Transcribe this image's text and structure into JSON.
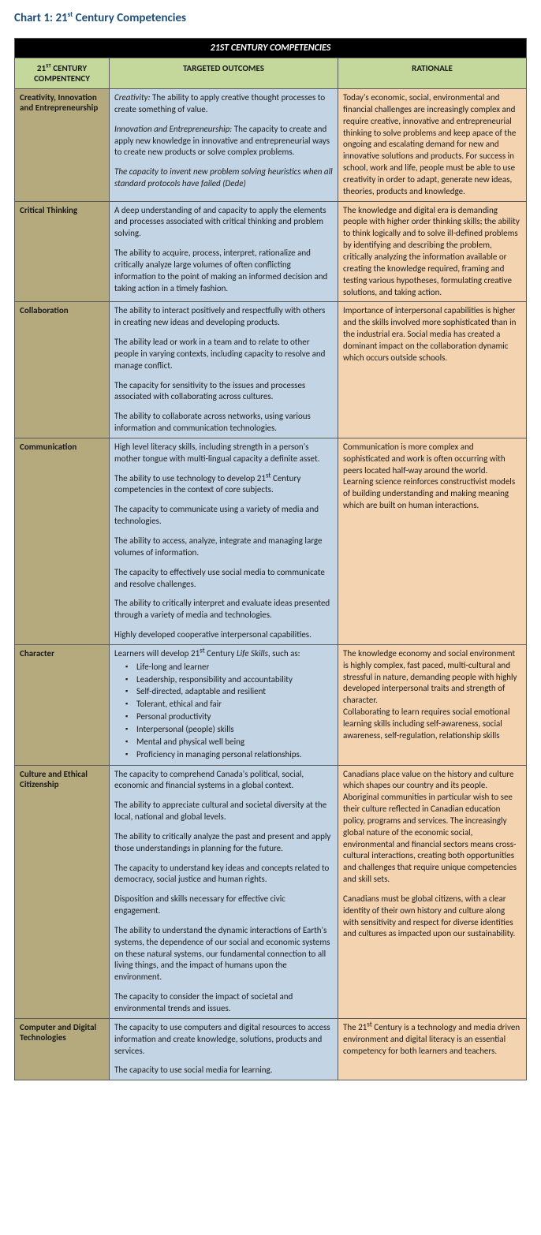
{
  "title_html": "Chart 1: 21<sup>st</sup> Century Competencies",
  "table_header": "21ST CENTURY COMPETENCIES",
  "col_headers": {
    "competency_html": "21<sup>ST</sup> CENTURY COMPENTENCY",
    "outcomes": "TARGETED OUTCOMES",
    "rationale": "RATIONALE"
  },
  "colors": {
    "title": "#1f4e79",
    "header_bg": "#000000",
    "header_fg": "#ffffff",
    "subheader_bg": "#c5d89c",
    "competency_bg": "#b5a97e",
    "outcomes_bg": "#c3d4e5",
    "rationale_bg": "#f3d3b0",
    "border": "#5a5a5a"
  },
  "rows": [
    {
      "competency": "Creativity, Innovation and Entrepreneurship",
      "outcomes_html": "<p><em class=\"lead\">Creativity:</em> The ability to apply creative thought processes to create something of value.</p><p><em class=\"lead\">Innovation and Entrepreneurship:</em> The capacity to create and apply new knowledge in innovative and entrepreneurial ways to create new products or solve complex problems.</p><em class=\"quote\">The capacity to invent new problem solving heuristics when all standard protocols have failed (Dede)</em>",
      "rationale_html": "Today's economic, social, environmental and financial challenges are increasingly complex and require creative, innovative and entrepreneurial thinking to solve problems and keep apace of the ongoing and escalating demand for new and innovative solutions and products. For success in school, work and life, people must be able to use creativity in order to adapt, generate new ideas, theories, products and knowledge."
    },
    {
      "competency": "Critical Thinking",
      "outcomes_html": "<p>A deep understanding of and capacity to apply the elements and processes associated with critical thinking and problem solving.</p><p>The ability to acquire, process, interpret, rationalize and critically analyze large volumes of often conflicting information to the point of making an informed decision and taking action in a timely fashion.</p>",
      "rationale_html": "The knowledge and digital era is demanding people with higher order thinking skills; the ability to think logically and to solve ill-defined problems by identifying and describing the problem, critically analyzing the information available or creating the knowledge required, framing and testing various hypotheses, formulating creative solutions, and taking action."
    },
    {
      "competency": "Collaboration",
      "outcomes_html": "<p>The ability to interact positively and respectfully with others in creating new ideas and developing products.</p><p>The ability lead or work in a team and to relate to other people in varying contexts, including capacity to resolve and manage conflict.</p><p>The capacity for sensitivity to the issues and processes associated with collaborating across cultures.</p><p>The ability to collaborate across networks, using various information and communication technologies.</p>",
      "rationale_html": "Importance of interpersonal capabilities is higher and the skills involved more sophisticated than in the industrial era. Social media has created a dominant impact on the collaboration dynamic which occurs outside schools."
    },
    {
      "competency": "Communication",
      "outcomes_html": "<p>High level literacy skills, including strength in a person's mother tongue with multi-lingual capacity a definite asset.</p><p>The ability to use technology to develop 21<sup>st</sup> Century competencies in the context of core subjects.</p><p>The capacity to communicate using a variety of media and technologies.</p><p>The ability to access, analyze, integrate and managing large volumes of information.</p><p>The capacity to effectively use social media to communicate and resolve challenges.</p><p>The ability to critically interpret and evaluate ideas presented through a variety of media and technologies.</p><p>Highly developed cooperative interpersonal capabilities.</p>",
      "rationale_html": "Communication is more complex and sophisticated and work is often occurring with peers located half-way around the world.<br>Learning science reinforces constructivist models of building understanding and making meaning which are built on human interactions."
    },
    {
      "competency": "Character",
      "outcomes_html": "Learners will develop 21<sup>st</sup> Century <em>Life Skills</em>, such as:<ul class=\"bullets\"><li>Life-long and learner</li><li>Leadership, responsibility and accountability</li><li>Self-directed, adaptable and resilient</li><li>Tolerant, ethical and fair</li><li>Personal productivity</li><li>Interpersonal (people) skills</li><li>Mental and physical well being</li><li>Proficiency in managing personal relationships.</li></ul>",
      "rationale_html": "The knowledge economy and social environment is highly complex, fast paced, multi-cultural and stressful in nature, demanding people with highly developed interpersonal traits and strength of character.<br>Collaborating to learn requires social emotional learning skills including self-awareness, social awareness, self-regulation, relationship skills"
    },
    {
      "competency": "Culture and Ethical Citizenship",
      "outcomes_html": "<p>The capacity to comprehend Canada's political, social, economic and financial systems in a global context.</p><p>The ability to appreciate cultural and societal diversity at the local, national and global levels.</p><p>The ability to critically analyze the past and present and apply those understandings in planning for the future.</p><p>The capacity to understand key ideas and concepts related to democracy, social justice and human rights.</p><p>Disposition and skills necessary for effective civic engagement.</p><p>The ability to understand the dynamic interactions of Earth's systems, the dependence of our social and economic systems on these natural systems, our fundamental connection to all living things, and the impact of humans upon the environment.</p><p>The capacity to consider the impact of societal and environmental trends and issues.</p>",
      "rationale_html": "<p>Canadians place value on the history and culture which shapes our country and its people.  Aboriginal communities in particular wish to see their culture reflected in Canadian education policy, programs and services. The increasingly global nature of the economic social, environmental and financial sectors means cross-cultural interactions, creating both opportunities and challenges that require unique competencies and skill sets.</p><p>Canadians must be global citizens, with a clear identity of their own history and culture along with sensitivity and respect for diverse identities and cultures as impacted upon our sustainability.</p>"
    },
    {
      "competency": "Computer and Digital Technologies",
      "outcomes_html": "<p>The capacity to use computers and digital resources to access information and create knowledge, solutions, products and services.</p><p>The capacity to use social media for learning.</p>",
      "rationale_html": "The 21<sup>st</sup> Century is a technology and media driven environment and digital literacy is an essential competency for both learners and teachers."
    }
  ]
}
